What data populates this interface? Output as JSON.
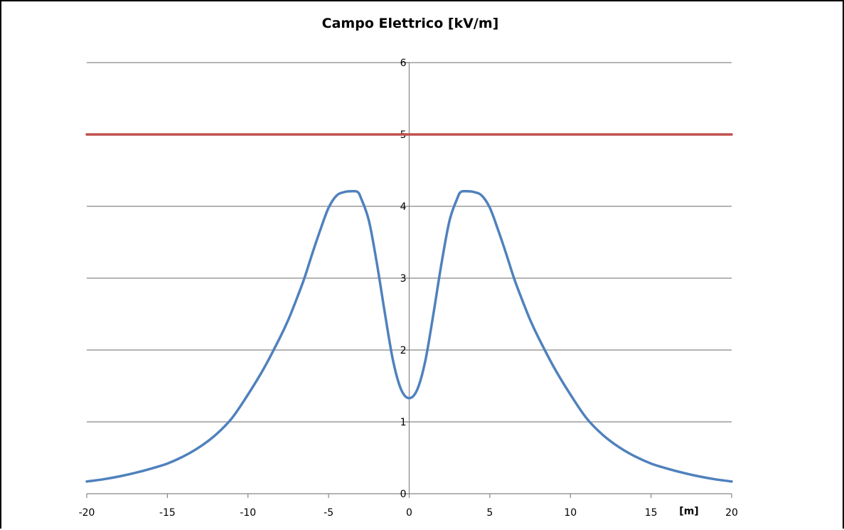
{
  "chart_data": {
    "type": "line",
    "title": "Campo Elettrico [kV/m]",
    "xlabel": "[m]",
    "ylabel": "",
    "xlim": [
      -20,
      20
    ],
    "ylim": [
      0,
      6
    ],
    "x_ticks": [
      -20,
      -15,
      -10,
      -5,
      0,
      5,
      10,
      15,
      20
    ],
    "y_ticks": [
      0,
      1,
      2,
      3,
      4,
      5,
      6
    ],
    "grid": "horizontal",
    "legend": "none",
    "series": [
      {
        "color": "#4F81BD",
        "x": [
          -20,
          -19,
          -18,
          -17,
          -16,
          -15,
          -14,
          -13,
          -12,
          -11,
          -10,
          -9,
          -8,
          -7.5,
          -7,
          -6.5,
          -6,
          -5.5,
          -5,
          -4.5,
          -4,
          -3.5,
          -3.2,
          -3,
          -2.5,
          -2,
          -1.5,
          -1,
          -0.5,
          0,
          0.5,
          1,
          1.5,
          2,
          2.5,
          3,
          3.2,
          3.5,
          4,
          4.5,
          5,
          5.5,
          6,
          6.5,
          7,
          7.5,
          8,
          9,
          10,
          11,
          12,
          13,
          14,
          15,
          16,
          17,
          18,
          19,
          20
        ],
        "values": [
          0.17,
          0.2,
          0.24,
          0.29,
          0.35,
          0.42,
          0.52,
          0.65,
          0.82,
          1.05,
          1.38,
          1.75,
          2.18,
          2.42,
          2.7,
          3.0,
          3.35,
          3.68,
          3.98,
          4.15,
          4.2,
          4.21,
          4.2,
          4.12,
          3.8,
          3.2,
          2.5,
          1.85,
          1.45,
          1.33,
          1.45,
          1.85,
          2.5,
          3.2,
          3.8,
          4.12,
          4.2,
          4.21,
          4.2,
          4.15,
          3.98,
          3.68,
          3.35,
          3.0,
          2.7,
          2.42,
          2.18,
          1.75,
          1.38,
          1.05,
          0.82,
          0.65,
          0.52,
          0.42,
          0.35,
          0.29,
          0.24,
          0.2,
          0.17
        ]
      },
      {
        "color": "#C0504D",
        "x": [
          -20,
          20
        ],
        "values": [
          5,
          5
        ]
      }
    ]
  }
}
